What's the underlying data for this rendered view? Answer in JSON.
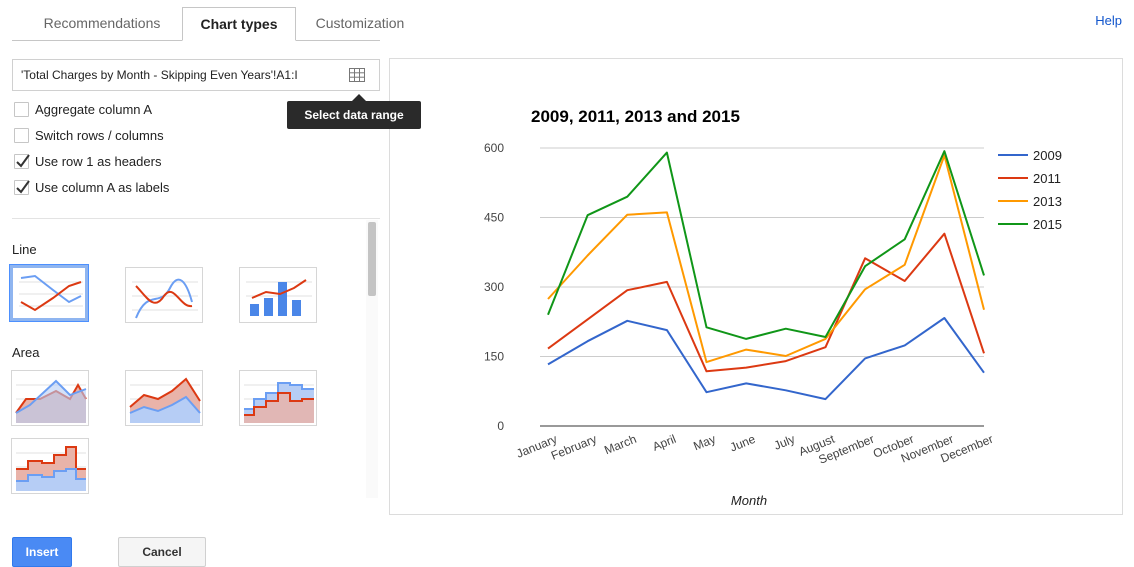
{
  "tabs": [
    {
      "label": "Recommendations",
      "active": false
    },
    {
      "label": "Chart types",
      "active": true
    },
    {
      "label": "Customization",
      "active": false
    }
  ],
  "help_label": "Help",
  "data_range": {
    "value": "'Total Charges by Month - Skipping Even Years'!A1:I",
    "button_icon": "grid-icon",
    "tooltip": "Select data range"
  },
  "options": [
    {
      "label": "Aggregate column A",
      "checked": false
    },
    {
      "label": "Switch rows / columns",
      "checked": false
    },
    {
      "label": "Use row 1 as headers",
      "checked": true
    },
    {
      "label": "Use column A as labels",
      "checked": true
    }
  ],
  "chart_type_sections": [
    {
      "label": "Line",
      "thumbnails": [
        "line-chart-icon",
        "smooth-line-chart-icon",
        "combo-chart-icon"
      ],
      "selected_index": 0
    },
    {
      "label": "Area",
      "thumbnails": [
        "area-chart-icon",
        "stacked-area-chart-icon",
        "stepped-area-chart-icon",
        "stacked-stepped-area-chart-icon"
      ]
    }
  ],
  "buttons": {
    "insert": "Insert",
    "cancel": "Cancel"
  },
  "colors": {
    "accent": "#4a8af4",
    "series": [
      "#3366cc",
      "#dc3912",
      "#ff9900",
      "#109618"
    ]
  },
  "chart_data": {
    "type": "line",
    "title": "2009, 2011, 2013 and 2015",
    "xlabel": "Month",
    "ylabel": "",
    "categories": [
      "January",
      "February",
      "March",
      "April",
      "May",
      "June",
      "July",
      "August",
      "September",
      "October",
      "November",
      "December"
    ],
    "ylim": [
      0,
      600
    ],
    "yticks": [
      0,
      150,
      300,
      450,
      600
    ],
    "grid": true,
    "legend_position": "right",
    "series": [
      {
        "name": "2009",
        "color": "#3366cc",
        "values": [
          133,
          183,
          227,
          207,
          73,
          92,
          77,
          58,
          146,
          174,
          233,
          115
        ]
      },
      {
        "name": "2011",
        "color": "#dc3912",
        "values": [
          167,
          230,
          293,
          311,
          118,
          126,
          140,
          170,
          362,
          313,
          415,
          157
        ]
      },
      {
        "name": "2013",
        "color": "#ff9900",
        "values": [
          274,
          368,
          456,
          461,
          138,
          165,
          151,
          188,
          295,
          348,
          584,
          251
        ]
      },
      {
        "name": "2015",
        "color": "#109618",
        "values": [
          240,
          455,
          495,
          590,
          213,
          188,
          210,
          192,
          345,
          403,
          593,
          325
        ]
      }
    ]
  }
}
